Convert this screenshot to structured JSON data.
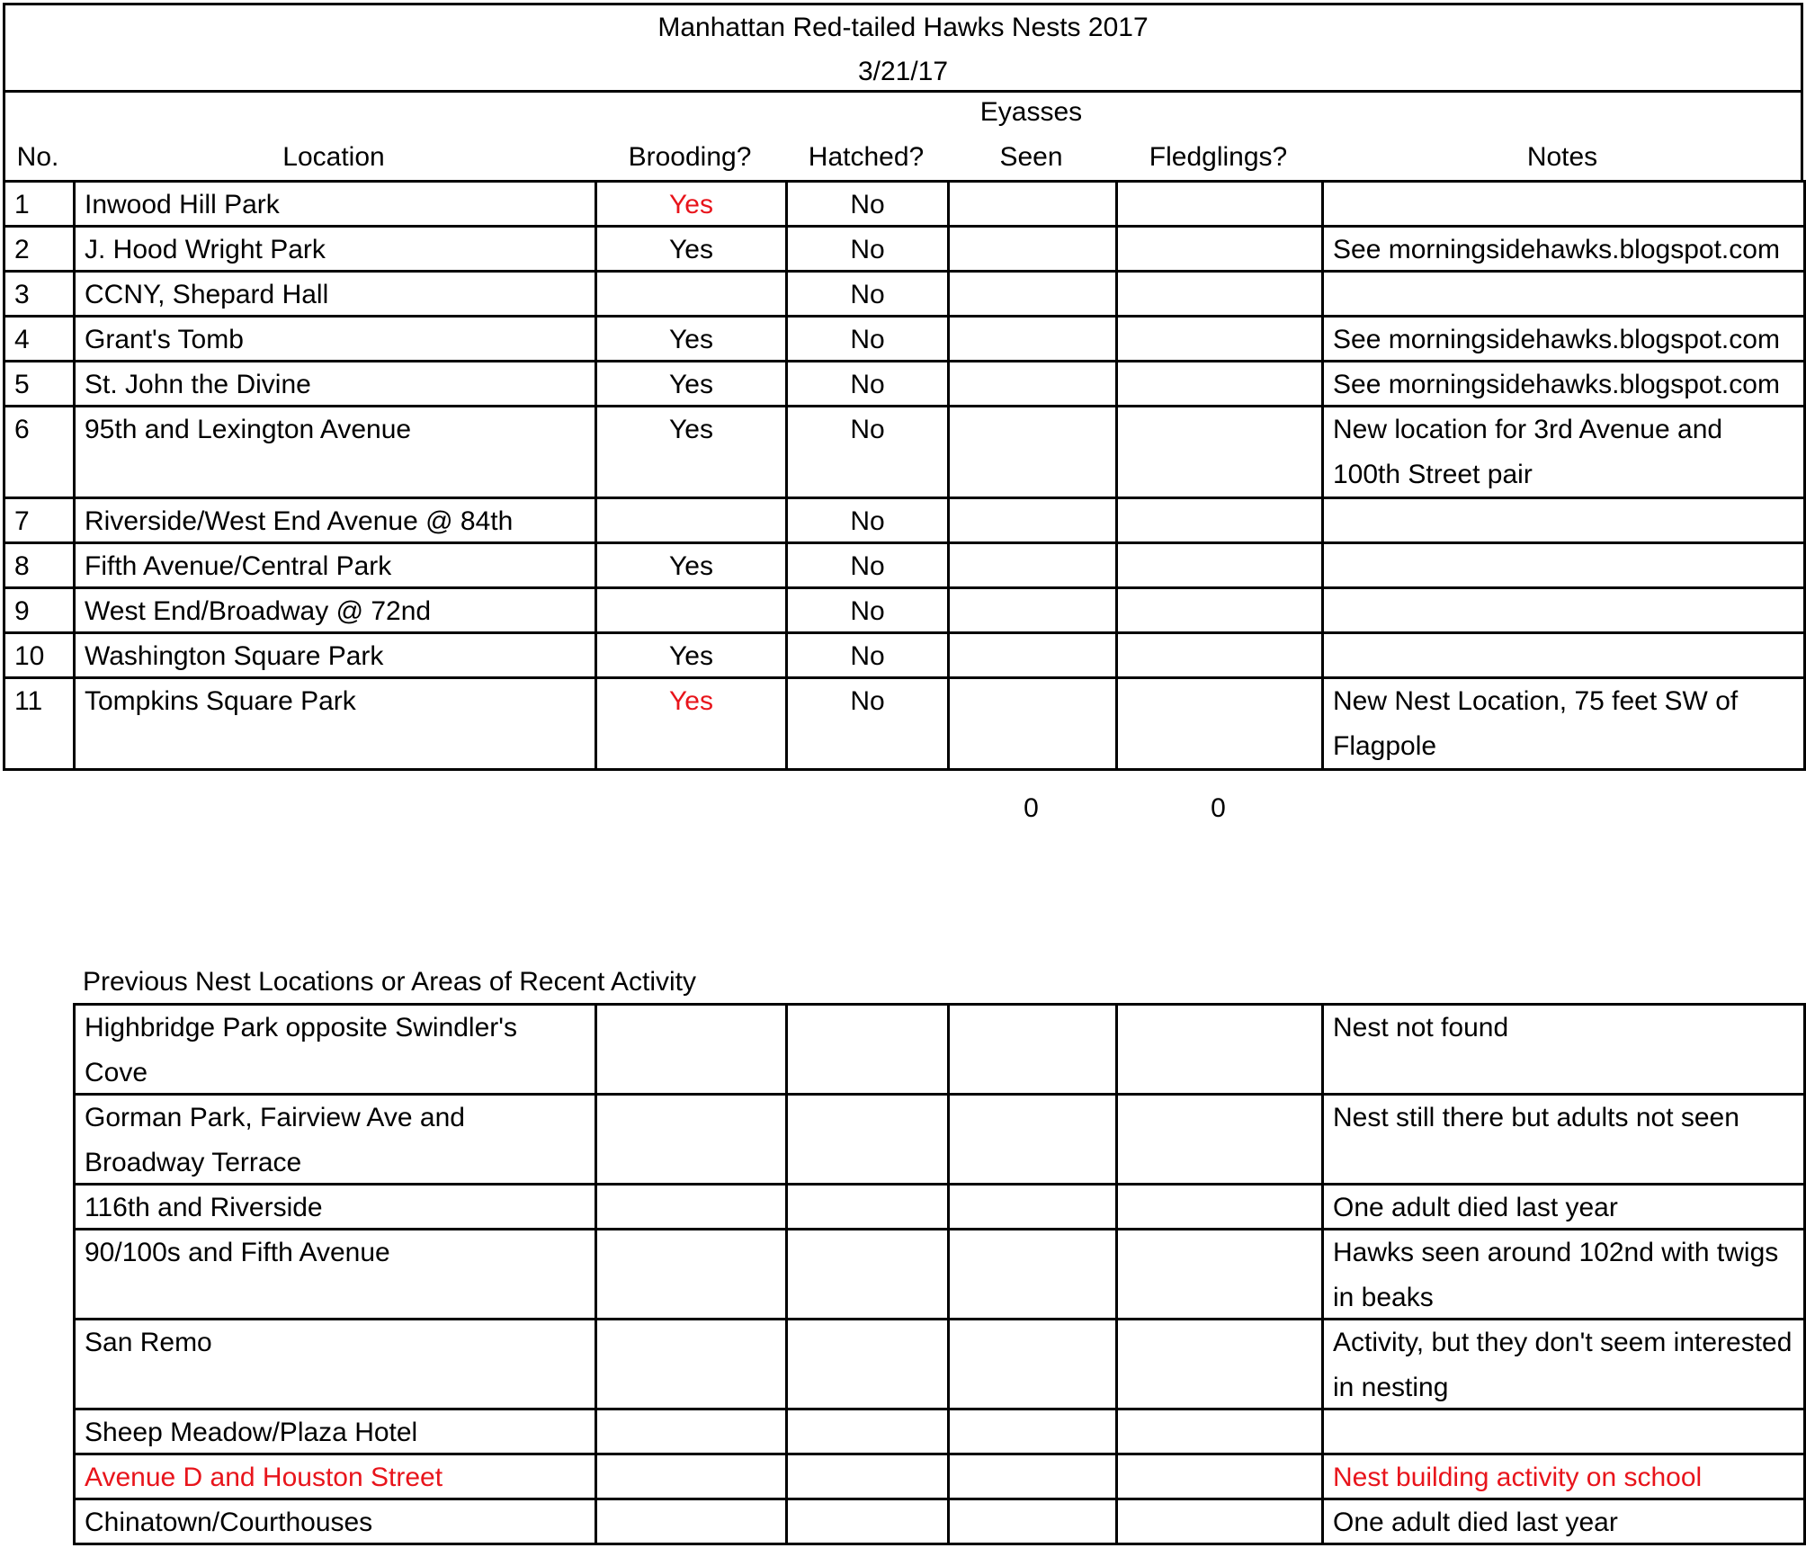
{
  "header": {
    "title": "Manhattan Red-tailed Hawks Nests 2017",
    "date": "3/21/17"
  },
  "table": {
    "columns": [
      "No.",
      "Location",
      "Brooding?",
      "Hatched?",
      "Eyasses Seen",
      "Fledglings?",
      "Notes"
    ],
    "rows": [
      {
        "no": 1,
        "location": "Inwood Hill Park",
        "brooding": {
          "text": "Yes",
          "color": "#e8141b"
        },
        "hatched": "No"
      },
      {
        "no": 2,
        "location": "J. Hood Wright Park",
        "brooding": "Yes",
        "hatched": "No",
        "notes": "See morningsidehawks.blogspot.com"
      },
      {
        "no": 3,
        "location": "CCNY, Shepard Hall",
        "hatched": "No"
      },
      {
        "no": 4,
        "location": "Grant's Tomb",
        "brooding": "Yes",
        "hatched": "No",
        "notes": "See morningsidehawks.blogspot.com"
      },
      {
        "no": 5,
        "location": "St. John the Divine",
        "brooding": "Yes",
        "hatched": "No",
        "notes": "See morningsidehawks.blogspot.com"
      },
      {
        "no": 6,
        "location": "95th and Lexington Avenue",
        "brooding": "Yes",
        "hatched": "No",
        "notes": "New location for 3rd Avenue and 100th Street pair"
      },
      {
        "no": 7,
        "location": "Riverside/West End Avenue @ 84th",
        "hatched": "No"
      },
      {
        "no": 8,
        "location": "Fifth Avenue/Central Park",
        "brooding": "Yes",
        "hatched": "No"
      },
      {
        "no": 9,
        "location": "West End/Broadway @ 72nd",
        "hatched": "No"
      },
      {
        "no": 10,
        "location": "Washington Square Park",
        "brooding": "Yes",
        "hatched": "No"
      },
      {
        "no": 11,
        "location": "Tompkins Square Park",
        "brooding": {
          "text": "Yes",
          "color": "#e8141b"
        },
        "hatched": "No",
        "notes": "New Nest Location, 75 feet SW of Flagpole"
      }
    ],
    "totals": {
      "eyasses_seen": 0,
      "fledglings": 0
    }
  },
  "previous": {
    "title": "Previous Nest Locations or Areas of Recent Activity",
    "rows": [
      {
        "location": "Highbridge Park opposite Swindler's Cove",
        "notes": "Nest not found"
      },
      {
        "location": "Gorman Park, Fairview Ave and Broadway Terrace",
        "notes": "Nest still there but adults not seen"
      },
      {
        "location": "116th and Riverside",
        "notes": "One adult died last year"
      },
      {
        "location": "90/100s and Fifth Avenue",
        "notes": "Hawks seen around 102nd with twigs in beaks"
      },
      {
        "location": "San Remo",
        "notes": "Activity, but they don't seem interested in nesting"
      },
      {
        "location": "Sheep Meadow/Plaza Hotel"
      },
      {
        "location": {
          "text": "Avenue D and Houston Street",
          "color": "#e8141b"
        },
        "notes": {
          "text": "Nest building activity on school",
          "color": "#e8141b"
        }
      },
      {
        "location": "Chinatown/Courthouses",
        "notes": "One adult died last year"
      }
    ]
  }
}
